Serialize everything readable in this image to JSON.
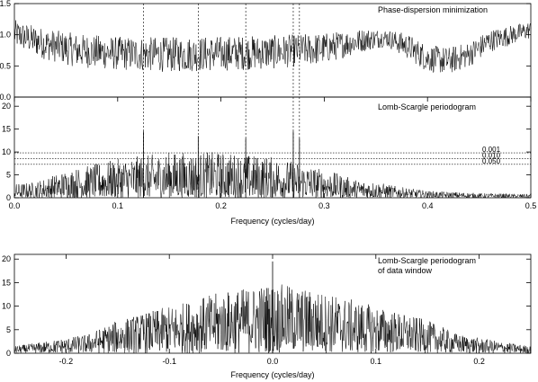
{
  "chart_data": [
    {
      "type": "line",
      "panel": "pdm",
      "title": "Phase-dispersion minimization",
      "xlim": [
        0.0,
        0.5
      ],
      "ylim": [
        0.0,
        1.5
      ],
      "yticks": [
        "0.0",
        "0.5",
        "1.0",
        "1.5"
      ],
      "marked_frequencies": [
        0.125,
        0.178,
        0.224,
        0.27,
        0.276
      ],
      "envelope": {
        "x": [
          0.0,
          0.03,
          0.06,
          0.1,
          0.15,
          0.2,
          0.25,
          0.3,
          0.34,
          0.36,
          0.38,
          0.4,
          0.42,
          0.44,
          0.46,
          0.5
        ],
        "center": [
          1.02,
          0.85,
          0.75,
          0.7,
          0.68,
          0.7,
          0.72,
          0.78,
          0.92,
          0.95,
          0.82,
          0.62,
          0.58,
          0.68,
          0.9,
          1.08
        ],
        "spread": [
          0.22,
          0.25,
          0.27,
          0.27,
          0.28,
          0.28,
          0.27,
          0.25,
          0.18,
          0.14,
          0.2,
          0.22,
          0.22,
          0.2,
          0.18,
          0.14
        ]
      }
    },
    {
      "type": "line",
      "panel": "ls",
      "title": "Lomb-Scargle periodogram",
      "xlim": [
        0.0,
        0.5
      ],
      "ylim": [
        0,
        22
      ],
      "yticks": [
        "0",
        "5",
        "10",
        "15",
        "20"
      ],
      "xticks": [
        "0.0",
        "0.1",
        "0.2",
        "0.3",
        "0.4",
        "0.5"
      ],
      "xlabel": "Frequency (cycles/day)",
      "significance_levels": [
        {
          "label": "0.001",
          "value": 9.8
        },
        {
          "label": "0.010",
          "value": 8.5
        },
        {
          "label": "0.050",
          "value": 7.3
        }
      ],
      "marked_frequencies": [
        0.125,
        0.178,
        0.224,
        0.27,
        0.276
      ],
      "peaks": [
        {
          "x": 0.125,
          "y": 14.5
        },
        {
          "x": 0.178,
          "y": 13.5
        },
        {
          "x": 0.224,
          "y": 13.0
        },
        {
          "x": 0.27,
          "y": 14.5
        },
        {
          "x": 0.276,
          "y": 13.0
        }
      ],
      "envelope": {
        "x": [
          0.0,
          0.02,
          0.05,
          0.1,
          0.15,
          0.2,
          0.25,
          0.28,
          0.31,
          0.33,
          0.35,
          0.37,
          0.4,
          0.45,
          0.5
        ],
        "amp": [
          3.0,
          3.5,
          6.0,
          8.5,
          10.0,
          10.0,
          9.0,
          7.5,
          5.5,
          4.0,
          3.5,
          2.5,
          1.5,
          1.0,
          0.8
        ]
      }
    },
    {
      "type": "line",
      "panel": "window",
      "title": "Lomb-Scargle periodogram",
      "subtitle": "of data window",
      "xlim": [
        -0.25,
        0.25
      ],
      "ylim": [
        0,
        21
      ],
      "yticks": [
        "0",
        "5",
        "10",
        "15",
        "20"
      ],
      "xticks": [
        "-0.2",
        "-0.1",
        "0.0",
        "0.1",
        "0.2"
      ],
      "xlabel": "Frequency (cycles/day)",
      "peak": {
        "x": 0.0,
        "y": 19.5
      },
      "envelope": {
        "x": [
          -0.25,
          -0.22,
          -0.18,
          -0.15,
          -0.1,
          -0.05,
          0.0,
          0.05,
          0.1,
          0.15,
          0.18,
          0.22,
          0.25
        ],
        "amp": [
          1.5,
          2.5,
          4.0,
          7.0,
          10.0,
          13.0,
          15.0,
          13.0,
          10.0,
          7.0,
          4.0,
          2.5,
          1.5
        ]
      }
    }
  ]
}
